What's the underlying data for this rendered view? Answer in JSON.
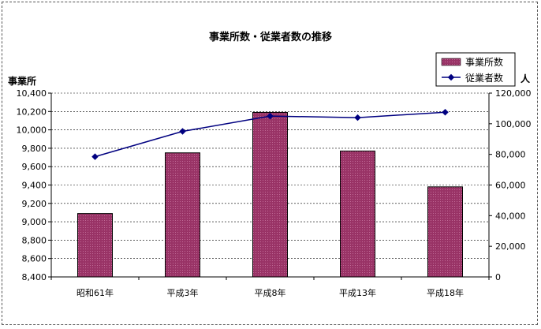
{
  "chart_data": {
    "type": "bar",
    "title": "事業所数・従業者数の推移",
    "categories": [
      "昭和61年",
      "平成3年",
      "平成8年",
      "平成13年",
      "平成18年"
    ],
    "series": [
      {
        "name": "事業所数",
        "type": "bar",
        "axis": "left",
        "color": "#993366",
        "values": [
          9090,
          9750,
          10190,
          9770,
          9380
        ]
      },
      {
        "name": "従業者数",
        "type": "line",
        "axis": "right",
        "color": "#000080",
        "values": [
          78500,
          95000,
          105000,
          104000,
          107500
        ]
      }
    ],
    "ylabel_left": "事業所",
    "ylabel_right": "人",
    "ylim_left": [
      8400,
      10400
    ],
    "ylim_right": [
      0,
      120000
    ],
    "yticks_left": [
      "8,400",
      "8,600",
      "8,800",
      "9,000",
      "9,200",
      "9,400",
      "9,600",
      "9,800",
      "10,000",
      "10,200",
      "10,400"
    ],
    "yticks_right": [
      "0",
      "20,000",
      "40,000",
      "60,000",
      "80,000",
      "100,000",
      "120,000"
    ],
    "grid": true,
    "legend_position": "top-right"
  }
}
